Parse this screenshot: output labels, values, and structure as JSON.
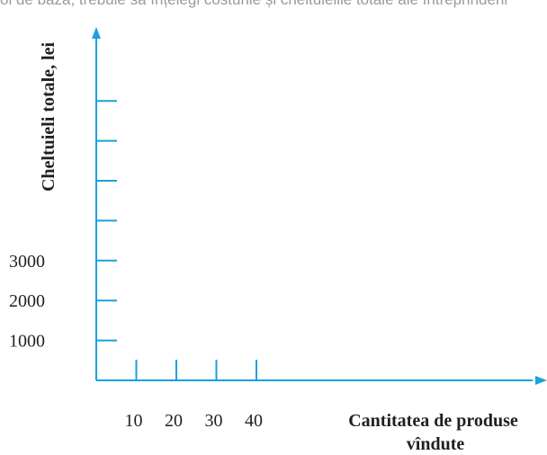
{
  "header_fragment": "ol de bază, trebuie să înțelegi costurile și cheltuielile totale ale întreprinderii",
  "colors": {
    "axis": "#1ba1dc",
    "text": "#231f20"
  },
  "chart_data": {
    "type": "line",
    "title": "",
    "ylabel": "Cheltuieli totale, lei",
    "xlabel_lines": [
      "Cantitatea de produse",
      "vîndute"
    ],
    "x_ticks": [
      10,
      20,
      30,
      40
    ],
    "x_tick_labels": [
      "10",
      "20",
      "30",
      "40"
    ],
    "y_ticks": [
      1000,
      2000,
      3000,
      4000,
      5000,
      6000,
      7000
    ],
    "y_tick_labels": [
      "1000",
      "2000",
      "3000",
      "",
      "",
      "",
      ""
    ],
    "xlim": [
      0,
      110
    ],
    "ylim": [
      0,
      8500
    ],
    "series": [],
    "grid": false
  }
}
